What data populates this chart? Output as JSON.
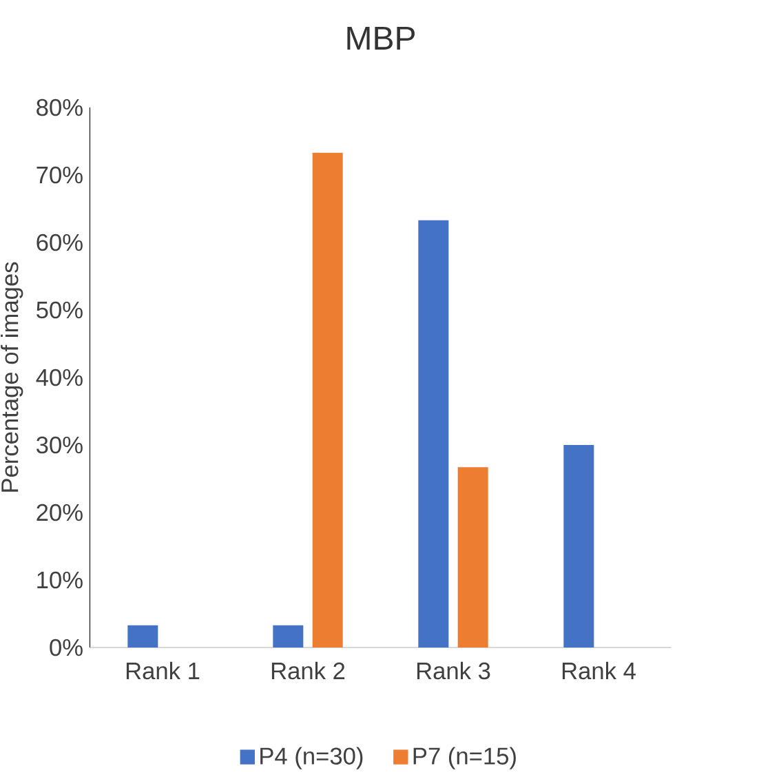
{
  "chart_data": {
    "type": "bar",
    "title": "MBP",
    "ylabel": "Percentage of images",
    "categories": [
      "Rank 1",
      "Rank 2",
      "Rank 3",
      "Rank 4"
    ],
    "series": [
      {
        "name": "P4 (n=30)",
        "color": "#4472c4",
        "values": [
          3.3,
          3.3,
          63.3,
          30
        ]
      },
      {
        "name": "P7 (n=15)",
        "color": "#ed7d31",
        "values": [
          0,
          73.3,
          26.7,
          0
        ]
      }
    ],
    "ylim": [
      0,
      80
    ],
    "yticks": [
      {
        "value": 0,
        "label": "0%"
      },
      {
        "value": 10,
        "label": "10%"
      },
      {
        "value": 20,
        "label": "20%"
      },
      {
        "value": 30,
        "label": "30%"
      },
      {
        "value": 40,
        "label": "40%"
      },
      {
        "value": 50,
        "label": "50%"
      },
      {
        "value": 60,
        "label": "60%"
      },
      {
        "value": 70,
        "label": "70%"
      },
      {
        "value": 80,
        "label": "80%"
      }
    ],
    "grid": false,
    "legend": "bottom"
  }
}
